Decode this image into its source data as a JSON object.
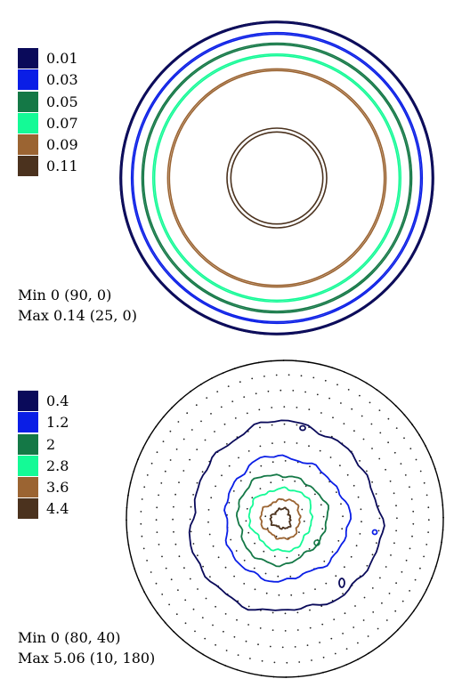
{
  "colors": [
    "#0a0a5a",
    "#0a1ee6",
    "#147846",
    "#14fa96",
    "#9b6432",
    "#4b321e"
  ],
  "charts": [
    {
      "chart_data": {
        "type": "contour-polar",
        "legend": [
          "0.01",
          "0.03",
          "0.05",
          "0.07",
          "0.09",
          "0.11"
        ],
        "contour_levels": [
          0.01,
          0.03,
          0.05,
          0.07,
          0.09,
          0.11
        ],
        "contour_polar_angle_pairs": [
          [
            90,
            89
          ],
          [
            82,
            81
          ],
          [
            75,
            74
          ],
          [
            68,
            67
          ],
          [
            59,
            58
          ],
          [
            26,
            24
          ]
        ],
        "min_label": "Min 0 (90, 0)",
        "max_label": "Max 0.14 (25, 0)"
      }
    },
    {
      "chart_data": {
        "type": "contour-polar",
        "legend": [
          "0.4",
          "1.2",
          "2",
          "2.8",
          "3.6",
          "4.4"
        ],
        "contour_levels": [
          0.4,
          1.2,
          2,
          2.8,
          3.6,
          4.4
        ],
        "contour_polar_angles": [
          50,
          32,
          23,
          16,
          10,
          5
        ],
        "min_label": "Min 0 (80, 40)",
        "max_label": "Max 5.06 (10, 180)"
      }
    }
  ]
}
